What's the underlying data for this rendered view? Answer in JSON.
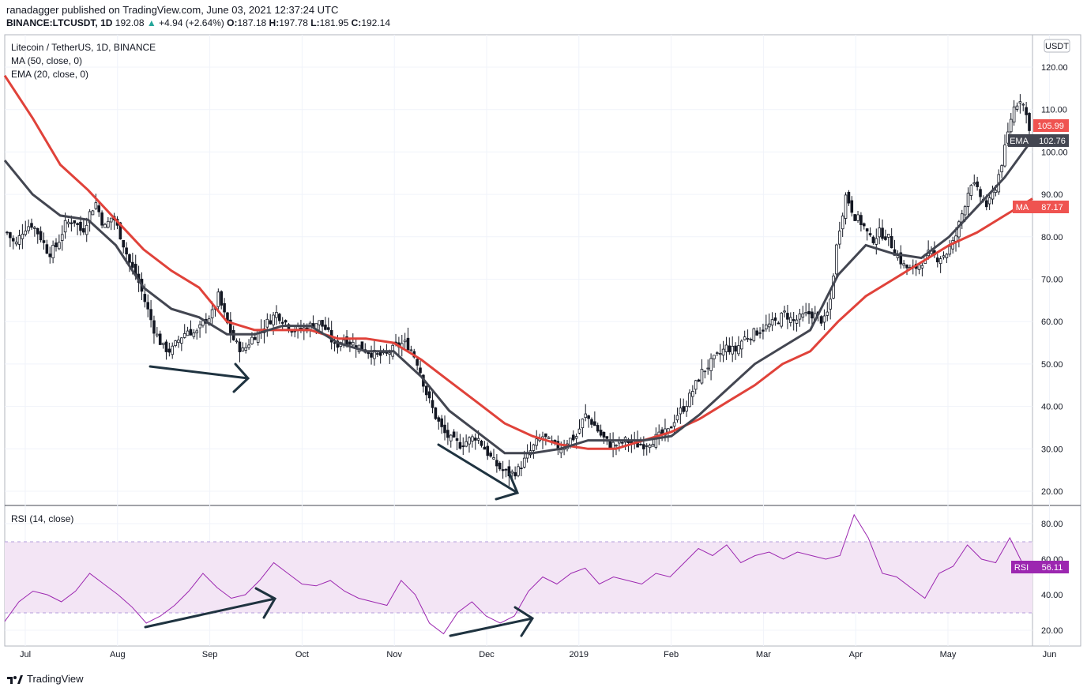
{
  "header": {
    "published_line": "ranadagger published on TradingView.com, June 03, 2021 12:37:24 UTC",
    "symbol": "BINANCE:LTCUSDT, 1D",
    "price": "192.08",
    "change": "+4.94 (+2.64%)",
    "ohlc": {
      "o": "187.18",
      "h": "197.78",
      "l": "181.95",
      "c": "192.14"
    },
    "o_label": "O:",
    "h_label": "H:",
    "l_label": "L:",
    "c_label": "C:"
  },
  "legend": {
    "title": "Litecoin / TetherUS, 1D, BINANCE",
    "ma": "MA (50, close, 0)",
    "ema": "EMA (20, close, 0)",
    "rsi": "RSI (14, close)"
  },
  "currency_badge": "USDT",
  "badges": {
    "last_price": "105.99",
    "ema_label": "EMA",
    "ema_value": "102.76",
    "ma_label": "MA",
    "ma_value": "87.17",
    "rsi_label": "RSI",
    "rsi_value": "56.11"
  },
  "footer": {
    "brand": "TradingView"
  },
  "colors": {
    "up": "#26a69a",
    "down": "#ef5350",
    "candle": "#131722",
    "ma": "#e0423a",
    "ema": "#434651",
    "rsi": "#9c27b0",
    "rsi_band": "#f3e5f5",
    "grid": "#f0f3fa",
    "arrow": "#1f3340"
  },
  "chart_data": [
    {
      "type": "candlestick",
      "title": "Litecoin / TetherUS, 1D, BINANCE",
      "x_ticks": [
        "Jul",
        "Aug",
        "Sep",
        "Oct",
        "Nov",
        "Dec",
        "2019",
        "Feb",
        "Mar",
        "Apr",
        "May",
        "Jun"
      ],
      "y_ticks": [
        "120.00",
        "110.00",
        "100.00",
        "90.00",
        "80.00",
        "70.00",
        "60.00",
        "50.00",
        "40.00",
        "30.00",
        "20.00"
      ],
      "ylim": [
        17.5,
        127.5
      ],
      "close_path": [
        [
          0,
          81
        ],
        [
          0.3,
          78
        ],
        [
          0.6,
          82
        ],
        [
          0.9,
          83
        ],
        [
          1.2,
          80
        ],
        [
          1.5,
          76
        ],
        [
          1.8,
          78
        ],
        [
          2.1,
          83
        ],
        [
          2.4,
          84
        ],
        [
          2.7,
          81
        ],
        [
          3.0,
          86
        ],
        [
          3.2,
          88
        ],
        [
          3.5,
          82
        ],
        [
          3.8,
          85
        ],
        [
          4.1,
          80
        ],
        [
          4.4,
          74
        ],
        [
          4.7,
          70
        ],
        [
          5.0,
          64
        ],
        [
          5.3,
          58
        ],
        [
          5.6,
          54
        ],
        [
          5.9,
          53
        ],
        [
          6.2,
          56
        ],
        [
          6.5,
          58
        ],
        [
          6.8,
          57
        ],
        [
          7.1,
          60
        ],
        [
          7.4,
          62
        ],
        [
          7.6,
          66
        ],
        [
          7.9,
          60
        ],
        [
          8.2,
          55
        ],
        [
          8.5,
          53
        ],
        [
          8.8,
          56
        ],
        [
          9.1,
          58
        ],
        [
          9.4,
          60
        ],
        [
          9.7,
          62
        ],
        [
          10.0,
          60
        ],
        [
          10.3,
          58
        ],
        [
          10.6,
          58
        ],
        [
          10.9,
          59
        ],
        [
          11.2,
          60
        ],
        [
          11.5,
          58
        ],
        [
          11.8,
          54
        ],
        [
          12.1,
          56
        ],
        [
          12.4,
          55
        ],
        [
          12.7,
          54
        ],
        [
          13.0,
          53
        ],
        [
          13.3,
          52
        ],
        [
          13.6,
          52
        ],
        [
          14.0,
          54
        ],
        [
          14.3,
          55
        ],
        [
          14.5,
          54
        ],
        [
          14.8,
          50
        ],
        [
          15.1,
          43
        ],
        [
          15.4,
          38
        ],
        [
          15.7,
          34
        ],
        [
          16.0,
          32
        ],
        [
          16.3,
          31
        ],
        [
          16.6,
          32
        ],
        [
          16.9,
          33
        ],
        [
          17.2,
          30
        ],
        [
          17.5,
          27
        ],
        [
          17.8,
          25
        ],
        [
          18.1,
          24
        ],
        [
          18.4,
          25
        ],
        [
          18.7,
          28
        ],
        [
          19.0,
          31
        ],
        [
          19.3,
          33
        ],
        [
          19.6,
          31
        ],
        [
          19.9,
          30
        ],
        [
          20.2,
          32
        ],
        [
          20.5,
          33
        ],
        [
          20.8,
          38
        ],
        [
          21.1,
          36
        ],
        [
          21.4,
          33
        ],
        [
          21.7,
          31
        ],
        [
          22.0,
          31
        ],
        [
          22.3,
          32
        ],
        [
          22.6,
          31
        ],
        [
          22.9,
          31
        ],
        [
          23.2,
          32
        ],
        [
          23.5,
          33
        ],
        [
          23.8,
          34
        ],
        [
          24.1,
          38
        ],
        [
          24.4,
          40
        ],
        [
          24.7,
          44
        ],
        [
          25.0,
          48
        ],
        [
          25.3,
          50
        ],
        [
          25.6,
          52
        ],
        [
          25.9,
          54
        ],
        [
          26.2,
          53
        ],
        [
          26.5,
          56
        ],
        [
          26.8,
          57
        ],
        [
          27.1,
          58
        ],
        [
          27.4,
          59
        ],
        [
          27.7,
          60
        ],
        [
          28.0,
          62
        ],
        [
          28.3,
          60
        ],
        [
          28.6,
          61
        ],
        [
          28.9,
          62
        ],
        [
          29.2,
          61
        ],
        [
          29.4,
          60
        ],
        [
          29.6,
          63
        ],
        [
          29.9,
          80
        ],
        [
          30.2,
          90
        ],
        [
          30.5,
          85
        ],
        [
          30.8,
          83
        ],
        [
          31.1,
          79
        ],
        [
          31.4,
          81
        ],
        [
          31.7,
          80
        ],
        [
          32.0,
          76
        ],
        [
          32.3,
          73
        ],
        [
          32.6,
          72
        ],
        [
          32.9,
          74
        ],
        [
          33.2,
          76
        ],
        [
          33.5,
          75
        ],
        [
          33.8,
          76
        ],
        [
          34.1,
          79
        ],
        [
          34.4,
          86
        ],
        [
          34.7,
          93
        ],
        [
          35.0,
          90
        ],
        [
          35.3,
          87
        ],
        [
          35.6,
          92
        ],
        [
          35.9,
          100
        ],
        [
          36.2,
          110
        ],
        [
          36.5,
          113
        ],
        [
          36.8,
          106
        ]
      ],
      "series": [
        {
          "name": "MA (50, close, 0)",
          "path": [
            [
              0,
              118
            ],
            [
              1,
              108
            ],
            [
              2,
              97
            ],
            [
              3,
              91
            ],
            [
              4,
              84
            ],
            [
              5,
              77
            ],
            [
              6,
              72
            ],
            [
              7,
              68
            ],
            [
              8,
              60
            ],
            [
              9,
              58
            ],
            [
              10,
              58
            ],
            [
              11,
              58
            ],
            [
              12,
              56
            ],
            [
              13,
              56
            ],
            [
              14,
              55
            ],
            [
              15,
              51
            ],
            [
              16,
              46
            ],
            [
              17,
              41
            ],
            [
              18,
              36
            ],
            [
              19,
              33
            ],
            [
              20,
              31
            ],
            [
              21,
              30
            ],
            [
              22,
              30
            ],
            [
              23,
              32
            ],
            [
              24,
              34
            ],
            [
              25,
              37
            ],
            [
              26,
              41
            ],
            [
              27,
              45
            ],
            [
              28,
              50
            ],
            [
              29,
              53
            ],
            [
              30,
              60
            ],
            [
              31,
              66
            ],
            [
              32,
              70
            ],
            [
              33,
              74
            ],
            [
              34,
              78
            ],
            [
              35,
              81
            ],
            [
              36,
              85
            ],
            [
              37,
              89
            ]
          ]
        },
        {
          "name": "EMA (20, close, 0)",
          "path": [
            [
              0,
              98
            ],
            [
              1,
              90
            ],
            [
              2,
              85
            ],
            [
              3,
              84
            ],
            [
              4,
              78
            ],
            [
              5,
              68
            ],
            [
              6,
              63
            ],
            [
              7,
              61
            ],
            [
              8,
              57
            ],
            [
              9,
              57
            ],
            [
              10,
              59
            ],
            [
              11,
              59
            ],
            [
              12,
              55
            ],
            [
              13,
              53
            ],
            [
              14,
              53
            ],
            [
              15,
              47
            ],
            [
              16,
              39
            ],
            [
              17,
              34
            ],
            [
              18,
              29
            ],
            [
              19,
              29
            ],
            [
              20,
              30
            ],
            [
              21,
              32
            ],
            [
              22,
              32
            ],
            [
              23,
              32
            ],
            [
              24,
              33
            ],
            [
              25,
              38
            ],
            [
              26,
              44
            ],
            [
              27,
              50
            ],
            [
              28,
              54
            ],
            [
              29,
              58
            ],
            [
              30,
              71
            ],
            [
              31,
              78
            ],
            [
              32,
              76
            ],
            [
              33,
              75
            ],
            [
              34,
              80
            ],
            [
              35,
              87
            ],
            [
              36,
              94
            ],
            [
              37,
              103
            ]
          ]
        }
      ]
    },
    {
      "type": "line",
      "title": "RSI (14, close)",
      "y_ticks": [
        "80.00",
        "60.00",
        "40.00",
        "20.00"
      ],
      "ylim": [
        13,
        88
      ],
      "bands": {
        "lower": 30,
        "upper": 70
      },
      "series": [
        {
          "name": "RSI (14, close)",
          "path": [
            [
              0,
              25
            ],
            [
              0.5,
              36
            ],
            [
              1,
              42
            ],
            [
              1.5,
              40
            ],
            [
              2,
              36
            ],
            [
              2.5,
              42
            ],
            [
              3,
              52
            ],
            [
              3.5,
              46
            ],
            [
              4,
              40
            ],
            [
              4.5,
              33
            ],
            [
              5,
              24
            ],
            [
              5.5,
              28
            ],
            [
              6,
              34
            ],
            [
              6.5,
              42
            ],
            [
              7,
              52
            ],
            [
              7.5,
              44
            ],
            [
              8,
              38
            ],
            [
              8.5,
              40
            ],
            [
              9,
              48
            ],
            [
              9.5,
              58
            ],
            [
              10,
              52
            ],
            [
              10.5,
              46
            ],
            [
              11,
              45
            ],
            [
              11.5,
              48
            ],
            [
              12,
              42
            ],
            [
              12.5,
              38
            ],
            [
              13,
              36
            ],
            [
              13.5,
              34
            ],
            [
              14,
              48
            ],
            [
              14.5,
              40
            ],
            [
              15,
              24
            ],
            [
              15.5,
              18
            ],
            [
              16,
              30
            ],
            [
              16.5,
              36
            ],
            [
              17,
              28
            ],
            [
              17.5,
              24
            ],
            [
              18,
              28
            ],
            [
              18.5,
              42
            ],
            [
              19,
              50
            ],
            [
              19.5,
              46
            ],
            [
              20,
              52
            ],
            [
              20.5,
              55
            ],
            [
              21,
              46
            ],
            [
              21.5,
              50
            ],
            [
              22,
              48
            ],
            [
              22.5,
              46
            ],
            [
              23,
              52
            ],
            [
              23.5,
              50
            ],
            [
              24,
              58
            ],
            [
              24.5,
              66
            ],
            [
              25,
              62
            ],
            [
              25.5,
              68
            ],
            [
              26,
              58
            ],
            [
              26.5,
              62
            ],
            [
              27,
              64
            ],
            [
              27.5,
              60
            ],
            [
              28,
              64
            ],
            [
              28.5,
              62
            ],
            [
              29,
              60
            ],
            [
              29.5,
              62
            ],
            [
              30,
              85
            ],
            [
              30.5,
              72
            ],
            [
              31,
              52
            ],
            [
              31.5,
              50
            ],
            [
              32,
              44
            ],
            [
              32.5,
              38
            ],
            [
              33,
              52
            ],
            [
              33.5,
              56
            ],
            [
              34,
              68
            ],
            [
              34.5,
              60
            ],
            [
              35,
              58
            ],
            [
              35.5,
              72
            ],
            [
              36,
              56
            ]
          ]
        }
      ]
    }
  ]
}
